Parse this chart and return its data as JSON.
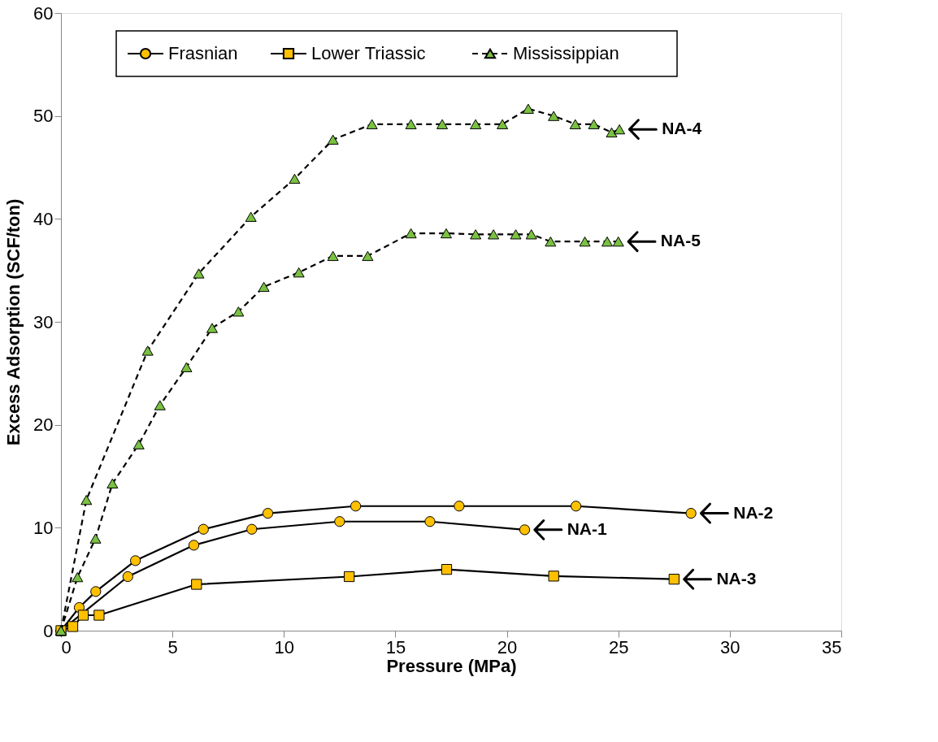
{
  "chart_data": {
    "type": "line",
    "xlabel": "Pressure (MPa)",
    "ylabel": "Excess Adsorption (SCF/ton)",
    "xlim": [
      0,
      35
    ],
    "xticks": [
      0,
      5,
      10,
      15,
      20,
      25,
      30,
      35
    ],
    "ylim": [
      0,
      60
    ],
    "yticks": [
      0,
      10,
      20,
      30,
      40,
      50,
      60
    ],
    "grid": false,
    "legend": "top left",
    "series": [
      {
        "name": "Frasnian",
        "color": "#ffc000",
        "marker": "circle",
        "line_style": "solid",
        "x": [
          0,
          3.0,
          5.96,
          8.56,
          12.5,
          16.55,
          20.8
        ],
        "values": [
          0,
          5.25,
          8.3,
          9.85,
          10.6,
          10.6,
          9.8
        ]
      },
      {
        "color": "#ffc000",
        "marker": "circle",
        "line_style": "solid",
        "x": [
          0,
          0.82,
          1.56,
          3.34,
          6.39,
          9.28,
          13.22,
          17.86,
          23.1,
          28.26
        ],
        "values": [
          0,
          2.25,
          3.8,
          6.8,
          9.85,
          11.4,
          12.1,
          12.1,
          12.1,
          11.4
        ]
      },
      {
        "name": "Lower Triassic",
        "color": "#ffc000",
        "marker": "square",
        "line_style": "solid",
        "x": [
          0,
          0.53,
          1.0,
          1.71,
          6.08,
          12.93,
          17.3,
          22.1,
          27.5
        ],
        "values": [
          0,
          0.4,
          1.5,
          1.5,
          4.5,
          5.25,
          5.95,
          5.3,
          5.0
        ]
      },
      {
        "name": "Mississippian",
        "color": "#7ac142",
        "marker": "triangle",
        "line_style": "dashed",
        "x": [
          0,
          1.14,
          3.89,
          6.18,
          8.52,
          10.48,
          12.2,
          13.95,
          15.7,
          17.1,
          18.6,
          19.8,
          20.96,
          22.1,
          23.07,
          23.9,
          24.7,
          25.05
        ],
        "values": [
          0,
          12.7,
          27.2,
          34.7,
          40.2,
          43.9,
          47.7,
          49.2,
          49.2,
          49.2,
          49.2,
          49.2,
          50.7,
          50.0,
          49.2,
          49.2,
          48.4,
          48.7
        ]
      },
      {
        "color": "#7ac142",
        "marker": "triangle",
        "line_style": "dashed",
        "x": [
          0,
          0.74,
          1.55,
          2.31,
          3.49,
          4.44,
          5.63,
          6.78,
          7.96,
          9.1,
          10.67,
          12.2,
          13.76,
          15.7,
          17.28,
          18.6,
          19.4,
          20.4,
          21.1,
          21.96,
          23.5,
          24.5,
          25.0
        ],
        "values": [
          0,
          5.2,
          8.95,
          14.3,
          18.1,
          21.9,
          25.6,
          29.4,
          31.0,
          33.4,
          34.8,
          36.4,
          36.4,
          38.6,
          38.6,
          38.5,
          38.5,
          38.5,
          38.5,
          37.8,
          37.8,
          37.8,
          37.8
        ]
      }
    ],
    "annotations": [
      {
        "text": "NA-4",
        "x": 25.05,
        "y": 48.7
      },
      {
        "text": "NA-5",
        "x": 25.0,
        "y": 37.8
      },
      {
        "text": "NA-2",
        "x": 28.26,
        "y": 11.4
      },
      {
        "text": "NA-1",
        "x": 20.8,
        "y": 9.8
      },
      {
        "text": "NA-3",
        "x": 27.5,
        "y": 5.0
      }
    ]
  }
}
